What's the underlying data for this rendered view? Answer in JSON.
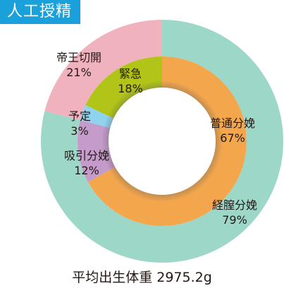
{
  "header": {
    "title": "人工授精"
  },
  "caption": "平均出生体重 2975.2g",
  "chart_data": [
    {
      "type": "pie",
      "ring": "outer",
      "slices": [
        {
          "label": "経膣分娩",
          "value": 79,
          "display": "79%",
          "color": "#9dd7c8"
        },
        {
          "label": "帝王切開",
          "value": 21,
          "display": "21%",
          "color": "#f0b2bd"
        }
      ]
    },
    {
      "type": "pie",
      "ring": "inner",
      "slices": [
        {
          "label": "普通分娩",
          "value": 67,
          "display": "67%",
          "color": "#f3a64c"
        },
        {
          "label": "吸引分娩",
          "value": 12,
          "display": "12%",
          "color": "#c49bcb"
        },
        {
          "label": "予定",
          "value": 3,
          "display": "3%",
          "color": "#8fd3ef"
        },
        {
          "label": "緊急",
          "value": 18,
          "display": "18%",
          "color": "#b1c418"
        }
      ]
    }
  ]
}
